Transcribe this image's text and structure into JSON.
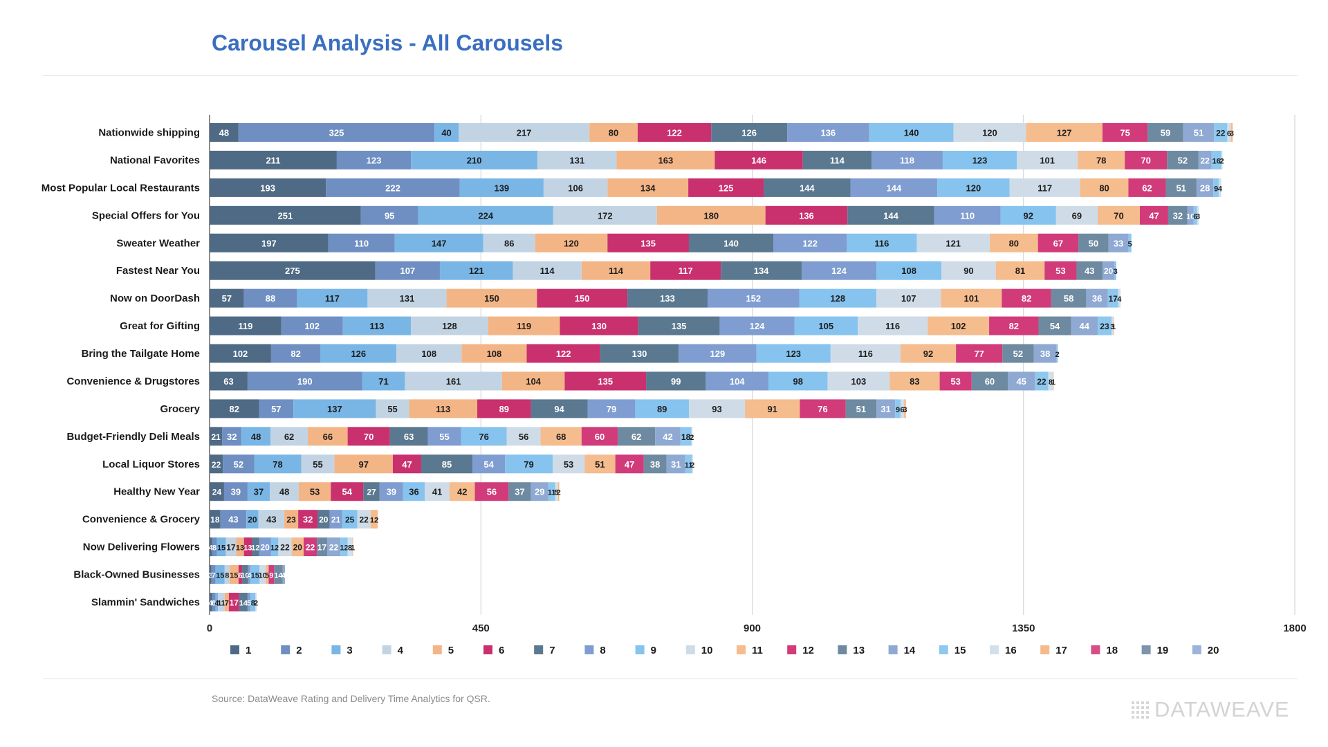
{
  "title": "Carousel Analysis - All Carousels",
  "source": "Source: DataWeave Rating and Delivery Time Analytics for QSR.",
  "logo_text": "DATAWEAVE",
  "chart_data": {
    "type": "bar",
    "orientation": "horizontal",
    "stacked": true,
    "categories": [
      "Nationwide shipping",
      "National Favorites",
      "Most Popular Local Restaurants",
      "Special Offers for You",
      "Sweater Weather",
      "Fastest Near You",
      "Now on DoorDash",
      "Great for Gifting",
      "Bring the Tailgate Home",
      "Convenience & Drugstores",
      "Grocery",
      "Budget-Friendly Deli Meals",
      "Local Liquor Stores",
      "Healthy New Year",
      "Convenience & Grocery",
      "Now Delivering Flowers",
      "Black-Owned Businesses",
      "Slammin' Sandwiches"
    ],
    "xlim": [
      0,
      1800
    ],
    "xticks": [
      0,
      450,
      900,
      1350,
      1800
    ],
    "grid": true,
    "legend_position": "bottom",
    "colors": [
      "#4e6a85",
      "#6f8fc2",
      "#79b6e6",
      "#c2d4e3",
      "#f3b585",
      "#c9306e",
      "#5a7890",
      "#7f9dd0",
      "#86c3ef",
      "#cfdce8",
      "#f5bc8e",
      "#d13b7a",
      "#6e8aa0",
      "#8fa9d3",
      "#8ec8ee",
      "#d2e0ec",
      "#f4ba8a",
      "#d84c88",
      "#7d94ab",
      "#9cb4dc"
    ],
    "series": [
      {
        "name": "1",
        "values": [
          48,
          211,
          193,
          251,
          197,
          275,
          57,
          119,
          102,
          63,
          82,
          21,
          22,
          24,
          18,
          4,
          3,
          4
        ]
      },
      {
        "name": "2",
        "values": [
          325,
          123,
          222,
          95,
          110,
          107,
          88,
          102,
          82,
          190,
          57,
          32,
          52,
          39,
          43,
          8,
          7,
          6
        ]
      },
      {
        "name": "3",
        "values": [
          40,
          210,
          139,
          224,
          147,
          121,
          117,
          113,
          126,
          71,
          137,
          48,
          78,
          37,
          20,
          15,
          15,
          4
        ]
      },
      {
        "name": "4",
        "values": [
          217,
          131,
          106,
          172,
          86,
          114,
          131,
          128,
          108,
          161,
          55,
          62,
          55,
          48,
          43,
          17,
          8,
          11
        ]
      },
      {
        "name": "5",
        "values": [
          80,
          163,
          134,
          180,
          120,
          114,
          150,
          119,
          108,
          104,
          113,
          66,
          97,
          53,
          23,
          13,
          15,
          7
        ]
      },
      {
        "name": "6",
        "values": [
          122,
          146,
          125,
          136,
          135,
          117,
          150,
          130,
          122,
          135,
          89,
          70,
          47,
          54,
          32,
          13,
          6,
          17
        ]
      },
      {
        "name": "7",
        "values": [
          126,
          114,
          144,
          144,
          140,
          134,
          133,
          135,
          130,
          99,
          94,
          63,
          85,
          27,
          20,
          12,
          10,
          14
        ]
      },
      {
        "name": "8",
        "values": [
          136,
          118,
          144,
          110,
          122,
          124,
          152,
          124,
          129,
          104,
          79,
          55,
          54,
          39,
          21,
          20,
          4,
          5
        ]
      },
      {
        "name": "9",
        "values": [
          140,
          123,
          120,
          92,
          116,
          108,
          128,
          105,
          123,
          98,
          89,
          76,
          79,
          36,
          25,
          12,
          15,
          8
        ]
      },
      {
        "name": "10",
        "values": [
          120,
          101,
          117,
          69,
          121,
          90,
          107,
          116,
          116,
          103,
          93,
          56,
          53,
          41,
          22,
          22,
          10,
          2
        ]
      },
      {
        "name": "11",
        "values": [
          127,
          78,
          80,
          70,
          80,
          81,
          101,
          102,
          92,
          83,
          91,
          68,
          51,
          42,
          12,
          20,
          5,
          null
        ]
      },
      {
        "name": "12",
        "values": [
          75,
          70,
          62,
          47,
          67,
          53,
          82,
          82,
          77,
          53,
          76,
          60,
          47,
          56,
          null,
          22,
          9,
          null
        ]
      },
      {
        "name": "13",
        "values": [
          59,
          52,
          51,
          32,
          50,
          43,
          58,
          54,
          52,
          60,
          51,
          62,
          38,
          37,
          null,
          17,
          14,
          null
        ]
      },
      {
        "name": "14",
        "values": [
          51,
          22,
          28,
          10,
          33,
          20,
          36,
          44,
          38,
          45,
          31,
          42,
          31,
          29,
          null,
          22,
          4,
          null
        ]
      },
      {
        "name": "15",
        "values": [
          22,
          16,
          9,
          6,
          5,
          3,
          17,
          23,
          2,
          22,
          9,
          18,
          11,
          11,
          null,
          12,
          null,
          null
        ]
      },
      {
        "name": "16",
        "values": [
          6,
          2,
          4,
          3,
          null,
          null,
          4,
          3,
          null,
          8,
          6,
          2,
          2,
          5,
          null,
          8,
          null,
          null
        ]
      },
      {
        "name": "17",
        "values": [
          3,
          null,
          null,
          null,
          null,
          null,
          null,
          1,
          null,
          1,
          3,
          null,
          null,
          2,
          null,
          1,
          null,
          null
        ]
      },
      {
        "name": "18",
        "values": [
          null,
          null,
          null,
          null,
          null,
          null,
          null,
          null,
          null,
          null,
          null,
          null,
          null,
          null,
          null,
          null,
          null,
          null
        ]
      },
      {
        "name": "19",
        "values": [
          null,
          null,
          null,
          null,
          null,
          null,
          null,
          null,
          null,
          null,
          null,
          null,
          null,
          null,
          null,
          null,
          null,
          null
        ]
      },
      {
        "name": "20",
        "values": [
          null,
          null,
          null,
          null,
          null,
          null,
          null,
          null,
          null,
          null,
          null,
          null,
          null,
          null,
          null,
          null,
          null,
          null
        ]
      }
    ]
  }
}
